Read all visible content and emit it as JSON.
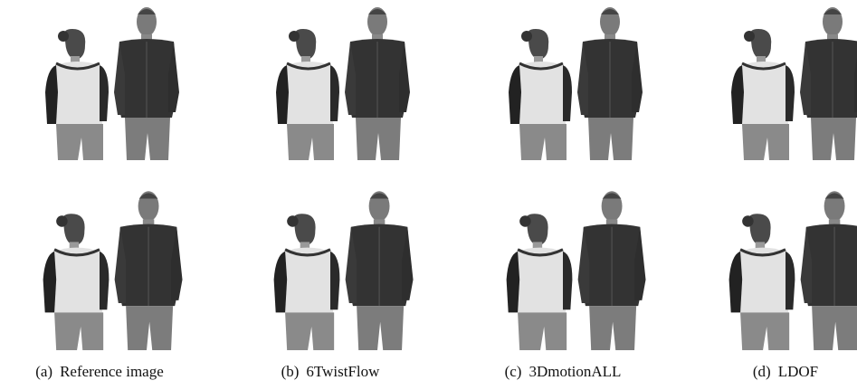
{
  "figure": {
    "panels": [
      {
        "label": "(a)",
        "caption": "Reference image"
      },
      {
        "label": "(b)",
        "caption": "6TwistFlow"
      },
      {
        "label": "(c)",
        "caption": "3DmotionALL"
      },
      {
        "label": "(d)",
        "caption": "LDOF"
      }
    ]
  }
}
